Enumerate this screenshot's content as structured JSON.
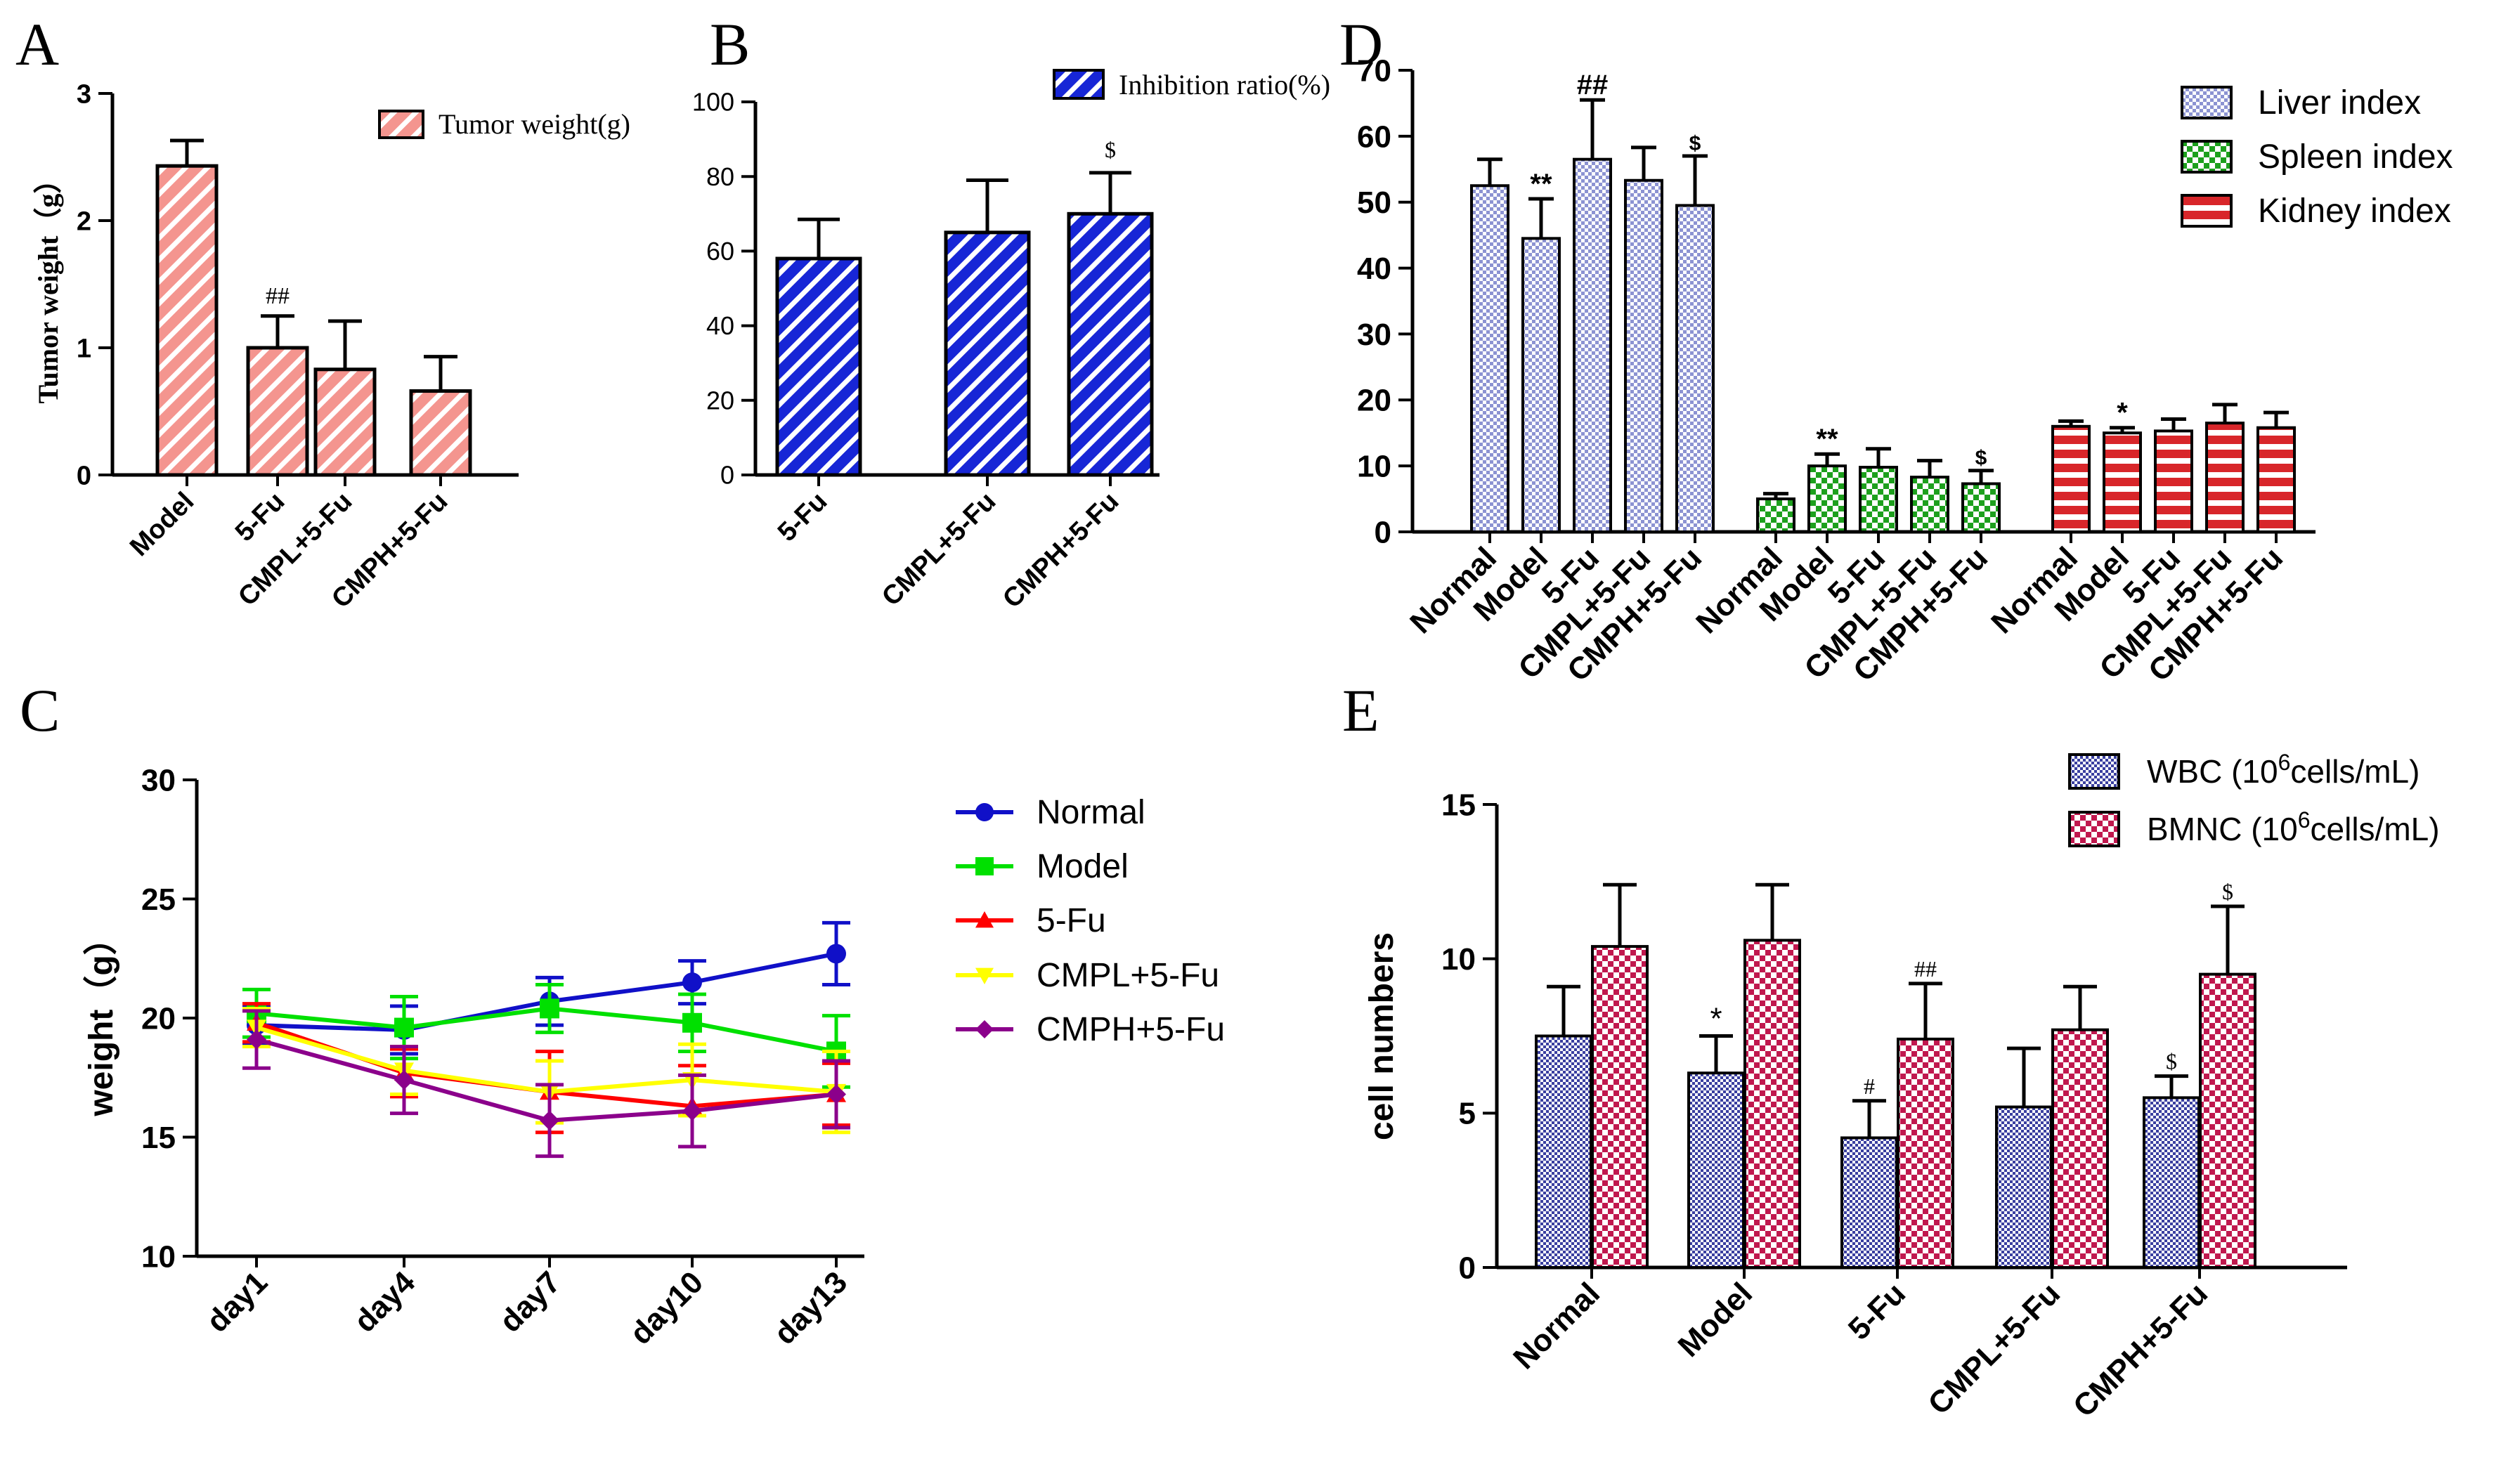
{
  "colors": {
    "salmon": "#F4958F",
    "blue": "#1726D6",
    "lavender": "#8C93D2",
    "green": "#1DA01D",
    "red": "#D8262A",
    "crimson": "#C0184E",
    "normal": "#1010C8",
    "model": "#00E000",
    "fu": "#FF0000",
    "cmpl": "#FFFF00",
    "cmph": "#8B008B"
  },
  "chart_data": [
    {
      "id": "A",
      "type": "bar",
      "panel_label": "A",
      "ylabel": "Tumor weight（g）",
      "ylim": [
        0,
        3
      ],
      "yticks": [
        "0",
        "1",
        "2",
        "3"
      ],
      "categories": [
        "Model",
        "5-Fu",
        "CMPL+5-Fu",
        "CMPH+5-Fu"
      ],
      "series": [
        {
          "name": "Tumor weight(g)",
          "values": [
            2.43,
            1.0,
            0.83,
            0.66
          ],
          "errors": [
            0.2,
            0.25,
            0.38,
            0.27
          ],
          "annotations": [
            "",
            "##",
            "",
            ""
          ]
        }
      ],
      "legend": "top-right"
    },
    {
      "id": "B",
      "type": "bar",
      "panel_label": "B",
      "ylim": [
        0,
        100
      ],
      "yticks": [
        "0",
        "20",
        "40",
        "60",
        "80",
        "100"
      ],
      "categories": [
        "5-Fu",
        "CMPL+5-Fu",
        "CMPH+5-Fu"
      ],
      "series": [
        {
          "name": "Inhibition ratio(%)",
          "values": [
            58,
            65,
            70
          ],
          "errors": [
            10.5,
            14,
            11
          ],
          "annotations": [
            "",
            "",
            "$"
          ]
        }
      ],
      "legend": "top"
    },
    {
      "id": "D",
      "type": "bar",
      "panel_label": "D",
      "ylim": [
        0,
        70
      ],
      "yticks": [
        "0",
        "10",
        "20",
        "30",
        "40",
        "50",
        "60",
        "70"
      ],
      "categories": [
        "Normal",
        "Model",
        "5-Fu",
        "CMPL+5-Fu",
        "CMPH+5-Fu"
      ],
      "series": [
        {
          "name": "Liver index",
          "values": [
            52.5,
            44.5,
            56.5,
            53.3,
            49.5
          ],
          "errors": [
            4,
            6,
            9,
            5,
            7.5
          ],
          "annotations": [
            "",
            "**",
            "##",
            "",
            "$"
          ]
        },
        {
          "name": "Spleen index",
          "values": [
            5,
            10,
            9.8,
            8.3,
            7.3
          ],
          "errors": [
            0.8,
            1.8,
            2.8,
            2.5,
            2
          ],
          "annotations": [
            "",
            "**",
            "",
            "",
            "$"
          ]
        },
        {
          "name": "Kidney index",
          "values": [
            16,
            15,
            15.3,
            16.5,
            15.8
          ],
          "errors": [
            0.8,
            0.8,
            1.8,
            2.8,
            2.3
          ],
          "annotations": [
            "",
            "*",
            "",
            "",
            ""
          ]
        }
      ],
      "legend": "top-right"
    },
    {
      "id": "C",
      "type": "line",
      "panel_label": "C",
      "ylabel": "weight（g）",
      "ylim": [
        10,
        30
      ],
      "yticks": [
        "10",
        "15",
        "20",
        "25",
        "30"
      ],
      "x": [
        "day1",
        "day4",
        "day7",
        "day10",
        "day13"
      ],
      "series": [
        {
          "name": "Normal",
          "values": [
            19.7,
            19.5,
            20.7,
            21.5,
            22.7
          ],
          "errors": [
            0.8,
            1.0,
            1.0,
            0.9,
            1.3
          ]
        },
        {
          "name": "Model",
          "values": [
            20.2,
            19.6,
            20.4,
            19.8,
            18.6
          ],
          "errors": [
            1.0,
            1.3,
            1.0,
            1.2,
            1.5
          ]
        },
        {
          "name": "5-Fu",
          "values": [
            19.8,
            17.7,
            16.9,
            16.3,
            16.8
          ],
          "errors": [
            0.8,
            1.0,
            1.7,
            1.7,
            1.3
          ]
        },
        {
          "name": "CMPL+5-Fu",
          "values": [
            19.6,
            17.8,
            16.9,
            17.4,
            16.9
          ],
          "errors": [
            0.8,
            1.0,
            1.3,
            1.5,
            1.7
          ]
        },
        {
          "name": "CMPH+5-Fu",
          "values": [
            19.1,
            17.4,
            15.7,
            16.1,
            16.8
          ],
          "errors": [
            1.2,
            1.4,
            1.5,
            1.5,
            1.4
          ]
        }
      ],
      "legend": "right"
    },
    {
      "id": "E",
      "type": "bar",
      "panel_label": "E",
      "ylabel": "cell numbers",
      "ylim": [
        0,
        15
      ],
      "yticks": [
        "0",
        "5",
        "10",
        "15"
      ],
      "categories": [
        "Normal",
        "Model",
        "5-Fu",
        "CMPL+5-Fu",
        "CMPH+5-Fu"
      ],
      "series": [
        {
          "name": "WBC",
          "unit": "(10",
          "unit_sup": "6",
          "unit_tail": "cells/mL)",
          "values": [
            7.5,
            6.3,
            4.2,
            5.2,
            5.5
          ],
          "errors": [
            1.6,
            1.2,
            1.2,
            1.9,
            0.7
          ],
          "annotations": [
            "",
            "*",
            "#",
            "",
            "$"
          ]
        },
        {
          "name": "BMNC",
          "unit": "(10",
          "unit_sup": "6",
          "unit_tail": "cells/mL)",
          "values": [
            10.4,
            10.6,
            7.4,
            7.7,
            9.5
          ],
          "errors": [
            2.0,
            1.8,
            1.8,
            1.4,
            2.2
          ],
          "annotations": [
            "",
            "",
            "##",
            "",
            "$"
          ]
        }
      ],
      "legend": "top-right"
    }
  ]
}
